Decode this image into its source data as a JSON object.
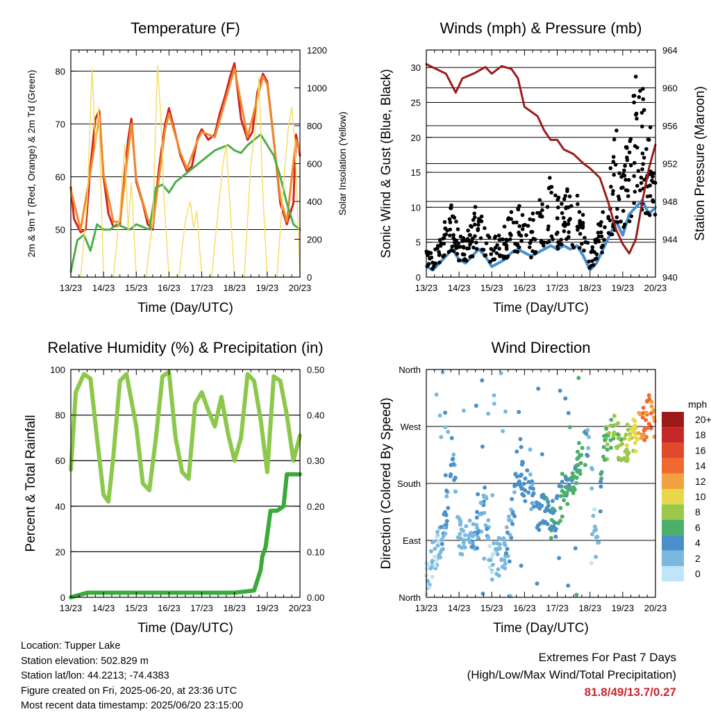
{
  "panels": {
    "temperature": {
      "title": "Temperature (F)",
      "ylabel_left": "2m & 9m T (Red, Orange) & 2m Td (Green)",
      "ylabel_right": "Solar Insolation (Yellow)",
      "xlabel": "Time (Day/UTC)"
    },
    "winds": {
      "title": "Winds (mph) & Pressure (mb)",
      "ylabel_left": "Sonic Wind & Gust (Blue, Black)",
      "ylabel_right": "Station Pressure (Maroon)",
      "xlabel": "Time (Day/UTC)"
    },
    "humidity": {
      "title": "Relative Humidity (%) & Precipitation (in)",
      "ylabel_left": "Percent & Total Rainfall",
      "xlabel": "Time (Day/UTC)"
    },
    "direction": {
      "title": "Wind Direction",
      "ylabel_left": "Direction (Colored By Speed)",
      "xlabel": "Time (Day/UTC)",
      "colorbar_title": "mph"
    }
  },
  "footer": {
    "location": "Location: Tupper Lake",
    "elevation": "Station elevation: 502.829 m",
    "latlon": "Station lat/lon: 44.2213; -74.4383",
    "created": "Figure created on Fri, 2025-06-20, at 23:36 UTC",
    "recent": "Most recent data timestamp: 2025/06/20 23:15:00"
  },
  "extremes": {
    "line1": "Extremes For Past 7 Days",
    "line2": "(High/Low/Max Wind/Total Precipitation)",
    "values": "81.8/49/13.7/0.27"
  },
  "colors": {
    "temp2m": "#d42020",
    "temp9m": "#f08a2a",
    "dewpoint": "#4caf48",
    "solar": "#f5dc5c",
    "wind": "#4a90d0",
    "gust": "#000000",
    "pressure": "#9b1b1b",
    "rh": "#8cc84b",
    "precip": "#3aaa3a"
  },
  "chart_data": [
    {
      "type": "line",
      "title": "Temperature (F)",
      "xlabel": "Time (Day/UTC)",
      "ylabel": "2m & 9m T (Red, Orange) & 2m Td (Green)",
      "ylabel_right": "Solar Insolation (Yellow)",
      "x_ticks": [
        "13/23",
        "14/23",
        "15/23",
        "16/23",
        "17/23",
        "18/23",
        "19/23",
        "20/23"
      ],
      "ylim": [
        41,
        84
      ],
      "y_ticks": [
        50,
        60,
        70,
        80
      ],
      "y2lim": [
        0,
        1200
      ],
      "y2_ticks": [
        0,
        200,
        400,
        600,
        800,
        1000,
        1200
      ],
      "grid": true,
      "series": [
        {
          "name": "2m T",
          "axis": "left",
          "color": "#d42020",
          "x": [
            0,
            0.1,
            0.3,
            0.45,
            0.6,
            0.75,
            0.87,
            1.0,
            1.15,
            1.3,
            1.5,
            1.75,
            1.85,
            2.0,
            2.2,
            2.35,
            2.5,
            2.7,
            2.88,
            3.0,
            3.2,
            3.35,
            3.55,
            3.7,
            3.88,
            4.0,
            4.2,
            4.4,
            4.55,
            4.7,
            4.87,
            5.0,
            5.2,
            5.4,
            5.55,
            5.7,
            5.87,
            6.0,
            6.2,
            6.4,
            6.6,
            6.8,
            6.88,
            7.0
          ],
          "y": [
            58,
            52,
            49.5,
            50,
            62,
            71,
            72.5,
            60,
            53,
            50.5,
            51,
            67,
            71,
            59,
            55,
            51,
            50,
            62,
            70,
            73,
            68,
            64,
            61,
            62,
            67.5,
            69,
            67,
            68,
            72,
            75,
            79,
            81.5,
            71,
            67,
            68.5,
            76,
            79.5,
            78,
            67,
            55,
            51,
            55,
            68,
            64
          ]
        },
        {
          "name": "9m T",
          "axis": "left",
          "color": "#f08a2a",
          "x": [
            0,
            0.3,
            0.6,
            0.87,
            1.0,
            1.3,
            1.5,
            1.85,
            2.0,
            2.35,
            2.5,
            2.88,
            3.0,
            3.35,
            3.55,
            3.88,
            4.0,
            4.4,
            4.7,
            5.0,
            5.4,
            5.87,
            6.0,
            6.4,
            6.6,
            6.88,
            7.0
          ],
          "y": [
            57.5,
            50,
            61,
            71.5,
            60.5,
            51.5,
            51.5,
            70,
            59.5,
            52,
            50.5,
            69,
            72,
            64.5,
            61.5,
            67,
            68.5,
            67.5,
            74,
            80.5,
            67.5,
            79,
            77.5,
            56,
            51.5,
            67,
            64.5
          ]
        },
        {
          "name": "2m Td",
          "axis": "left",
          "color": "#4caf48",
          "x": [
            0,
            0.2,
            0.4,
            0.6,
            0.8,
            1.0,
            1.2,
            1.4,
            1.6,
            1.8,
            2.0,
            2.2,
            2.4,
            2.6,
            2.8,
            3.0,
            3.2,
            3.4,
            3.6,
            3.8,
            4.0,
            4.2,
            4.4,
            4.6,
            4.8,
            5.0,
            5.2,
            5.4,
            5.6,
            5.8,
            6.0,
            6.2,
            6.4,
            6.6,
            6.8,
            7.0
          ],
          "y": [
            42,
            48,
            49,
            46,
            51,
            50,
            50,
            51,
            50.5,
            50,
            51,
            50.5,
            50,
            58,
            58.5,
            57,
            59,
            60,
            61,
            62,
            63,
            64,
            65,
            65.5,
            66,
            65,
            64.5,
            66,
            67,
            68,
            66,
            64,
            60,
            55,
            51,
            50
          ]
        },
        {
          "name": "Solar Insolation",
          "axis": "right",
          "color": "#f5dc5c",
          "x": [
            0,
            0.3,
            0.5,
            0.65,
            0.75,
            0.85,
            1.0,
            1.3,
            1.5,
            1.65,
            1.75,
            1.85,
            2.0,
            2.3,
            2.5,
            2.65,
            2.75,
            2.85,
            3.0,
            3.3,
            3.5,
            3.65,
            3.75,
            3.85,
            4.0,
            4.3,
            4.5,
            4.65,
            4.75,
            4.85,
            5.0,
            5.3,
            5.5,
            5.65,
            5.75,
            5.85,
            6.0,
            6.3,
            6.5,
            6.65,
            6.75,
            6.85,
            7.0
          ],
          "y": [
            0,
            0,
            400,
            1100,
            700,
            900,
            0,
            0,
            350,
            700,
            250,
            500,
            0,
            0,
            300,
            1120,
            850,
            400,
            0,
            0,
            300,
            400,
            260,
            350,
            0,
            0,
            350,
            600,
            700,
            420,
            0,
            0,
            600,
            800,
            1060,
            500,
            0,
            0,
            500,
            800,
            900,
            700,
            0
          ]
        }
      ]
    },
    {
      "type": "line",
      "title": "Winds (mph) & Pressure (mb)",
      "xlabel": "Time (Day/UTC)",
      "ylabel": "Sonic Wind & Gust (Blue, Black)",
      "ylabel_right": "Station Pressure (Maroon)",
      "x_ticks": [
        "13/23",
        "14/23",
        "15/23",
        "16/23",
        "17/23",
        "18/23",
        "19/23",
        "20/23"
      ],
      "ylim": [
        0,
        32.5
      ],
      "y_ticks": [
        0,
        5,
        10,
        15,
        20,
        25,
        30
      ],
      "y2lim": [
        940,
        964
      ],
      "y2_ticks": [
        940,
        944,
        948,
        952,
        956,
        960,
        964
      ],
      "grid": true,
      "series": [
        {
          "name": "Sonic Wind",
          "axis": "left",
          "color": "#4a90d0",
          "x": [
            0,
            0.2,
            0.4,
            0.6,
            0.8,
            1.0,
            1.2,
            1.4,
            1.6,
            1.8,
            2.0,
            2.2,
            2.4,
            2.6,
            2.8,
            3.0,
            3.2,
            3.4,
            3.6,
            3.8,
            4.0,
            4.2,
            4.4,
            4.6,
            4.8,
            5.0,
            5.2,
            5.4,
            5.6,
            5.8,
            6.0,
            6.2,
            6.4,
            6.6,
            6.8,
            7.0
          ],
          "y": [
            1.5,
            1,
            2,
            3,
            4,
            2.5,
            2,
            3,
            4,
            3,
            1.5,
            2,
            2.5,
            3.5,
            4,
            3.5,
            3,
            3.5,
            4,
            4.5,
            4,
            4.5,
            4,
            4.5,
            3,
            1,
            2,
            4,
            6,
            8,
            6,
            9,
            10,
            11,
            9,
            10
          ]
        },
        {
          "name": "Gust",
          "axis": "left",
          "color": "#000000",
          "x": [
            0,
            0.2,
            0.4,
            0.6,
            0.8,
            1.0,
            1.2,
            1.4,
            1.6,
            1.8,
            2.0,
            2.2,
            2.4,
            2.6,
            2.8,
            3.0,
            3.2,
            3.4,
            3.6,
            3.8,
            4.0,
            4.2,
            4.4,
            4.6,
            4.8,
            5.0,
            5.2,
            5.4,
            5.6,
            5.8,
            6.0,
            6.2,
            6.4,
            6.6,
            6.8,
            7.0
          ],
          "y": [
            4,
            3,
            5,
            8,
            10,
            6,
            5,
            8,
            11,
            7,
            5,
            6,
            7,
            9,
            10,
            9,
            8,
            10,
            12,
            14,
            11,
            12,
            11,
            12,
            8,
            3,
            6,
            10,
            14,
            20,
            16,
            22,
            28,
            26,
            24,
            22
          ]
        },
        {
          "name": "Station Pressure",
          "axis": "right",
          "color": "#9b1b1b",
          "x": [
            0,
            0.3,
            0.6,
            0.9,
            1.1,
            1.5,
            1.8,
            2.0,
            2.3,
            2.6,
            2.8,
            3.0,
            3.2,
            3.4,
            3.6,
            3.8,
            4.0,
            4.2,
            4.5,
            4.8,
            5.0,
            5.3,
            5.55,
            5.8,
            6.0,
            6.2,
            6.4,
            6.6,
            6.8,
            7.0
          ],
          "y": [
            962.5,
            962.0,
            961.5,
            959.5,
            961,
            961.6,
            962.2,
            961.5,
            962.3,
            962.0,
            961.0,
            958,
            957.5,
            957.0,
            955.5,
            954.5,
            954.5,
            953.5,
            953,
            952,
            951.5,
            950.5,
            948,
            945,
            943.5,
            942.5,
            944,
            948,
            951.5,
            954
          ]
        }
      ]
    },
    {
      "type": "line",
      "title": "Relative Humidity (%) & Precipitation (in)",
      "xlabel": "Time (Day/UTC)",
      "ylabel": "Percent & Total Rainfall",
      "x_ticks": [
        "13/23",
        "14/23",
        "15/23",
        "16/23",
        "17/23",
        "18/23",
        "19/23",
        "20/23"
      ],
      "ylim": [
        0,
        100
      ],
      "y_ticks": [
        0,
        20,
        40,
        60,
        80,
        100
      ],
      "y2lim": [
        0,
        0.5
      ],
      "y2_ticks": [
        "0.00",
        "0.10",
        "0.20",
        "0.30",
        "0.40",
        "0.50"
      ],
      "grid": true,
      "series": [
        {
          "name": "Relative Humidity",
          "axis": "left",
          "color": "#8cc84b",
          "x": [
            0,
            0.15,
            0.4,
            0.6,
            0.8,
            1.0,
            1.15,
            1.3,
            1.5,
            1.7,
            2.0,
            2.2,
            2.4,
            2.6,
            2.8,
            3.0,
            3.2,
            3.4,
            3.6,
            3.8,
            4.0,
            4.2,
            4.4,
            4.6,
            4.8,
            5.0,
            5.2,
            5.4,
            5.6,
            5.8,
            6.0,
            6.2,
            6.4,
            6.6,
            6.8,
            7.0
          ],
          "y": [
            56,
            90,
            98,
            96,
            70,
            45,
            42,
            62,
            95,
            98,
            75,
            50,
            47,
            70,
            97,
            99,
            70,
            55,
            52,
            85,
            90,
            82,
            75,
            88,
            72,
            60,
            70,
            98,
            95,
            78,
            55,
            97,
            95,
            80,
            60,
            71
          ]
        },
        {
          "name": "Total Precipitation",
          "axis": "right",
          "color": "#3aaa3a",
          "x": [
            0,
            0.5,
            1.0,
            2.0,
            3.0,
            4.0,
            5.0,
            5.6,
            5.8,
            5.85,
            5.95,
            6.1,
            6.3,
            6.5,
            6.6,
            6.8,
            7.0
          ],
          "y": [
            0,
            0.01,
            0.01,
            0.01,
            0.01,
            0.01,
            0.01,
            0.015,
            0.06,
            0.09,
            0.11,
            0.19,
            0.19,
            0.2,
            0.27,
            0.27,
            0.27
          ]
        }
      ]
    },
    {
      "type": "scatter",
      "title": "Wind Direction",
      "xlabel": "Time (Day/UTC)",
      "ylabel": "Direction (Colored By Speed)",
      "x_ticks": [
        "13/23",
        "14/23",
        "15/23",
        "16/23",
        "17/23",
        "18/23",
        "19/23",
        "20/23"
      ],
      "y_ticks": [
        "North",
        "East",
        "South",
        "West",
        "North"
      ],
      "ylim": [
        0,
        360
      ],
      "grid": true,
      "colorbar": {
        "title": "mph",
        "labels": [
          "20+",
          "18",
          "16",
          "14",
          "12",
          "10",
          "8",
          "6",
          "4",
          "2",
          "0"
        ],
        "colors": [
          "#9e1a1a",
          "#c62828",
          "#e04a2a",
          "#f06a30",
          "#f5a040",
          "#e6d84a",
          "#9cc84a",
          "#4caf6a",
          "#4a90c8",
          "#7ab8e0",
          "#c0e4f8"
        ]
      },
      "series": [
        {
          "name": "Direction",
          "x": [
            0,
            0.2,
            0.4,
            0.6,
            0.8,
            1.0,
            1.2,
            1.4,
            1.6,
            1.8,
            2.0,
            2.2,
            2.4,
            2.6,
            2.8,
            3.0,
            3.2,
            3.4,
            3.6,
            3.8,
            4.0,
            4.2,
            4.4,
            4.6,
            4.8,
            5.0,
            5.2,
            5.4,
            5.6,
            5.8,
            6.0,
            6.2,
            6.4,
            6.6,
            6.8,
            7.0
          ],
          "y": [
            30,
            60,
            80,
            120,
            220,
            100,
            90,
            95,
            110,
            150,
            40,
            60,
            70,
            120,
            200,
            180,
            170,
            130,
            140,
            120,
            140,
            160,
            170,
            200,
            230,
            250,
            60,
            230,
            250,
            260,
            230,
            250,
            255,
            270,
            290,
            275
          ],
          "speed": [
            1,
            1,
            2,
            3,
            4,
            2,
            2,
            3,
            4,
            3,
            1,
            2,
            2,
            3,
            4,
            4,
            3,
            4,
            4,
            5,
            4,
            5,
            5,
            6,
            6,
            1,
            2,
            6,
            7,
            8,
            7,
            9,
            10,
            13,
            14,
            11
          ]
        }
      ]
    }
  ]
}
